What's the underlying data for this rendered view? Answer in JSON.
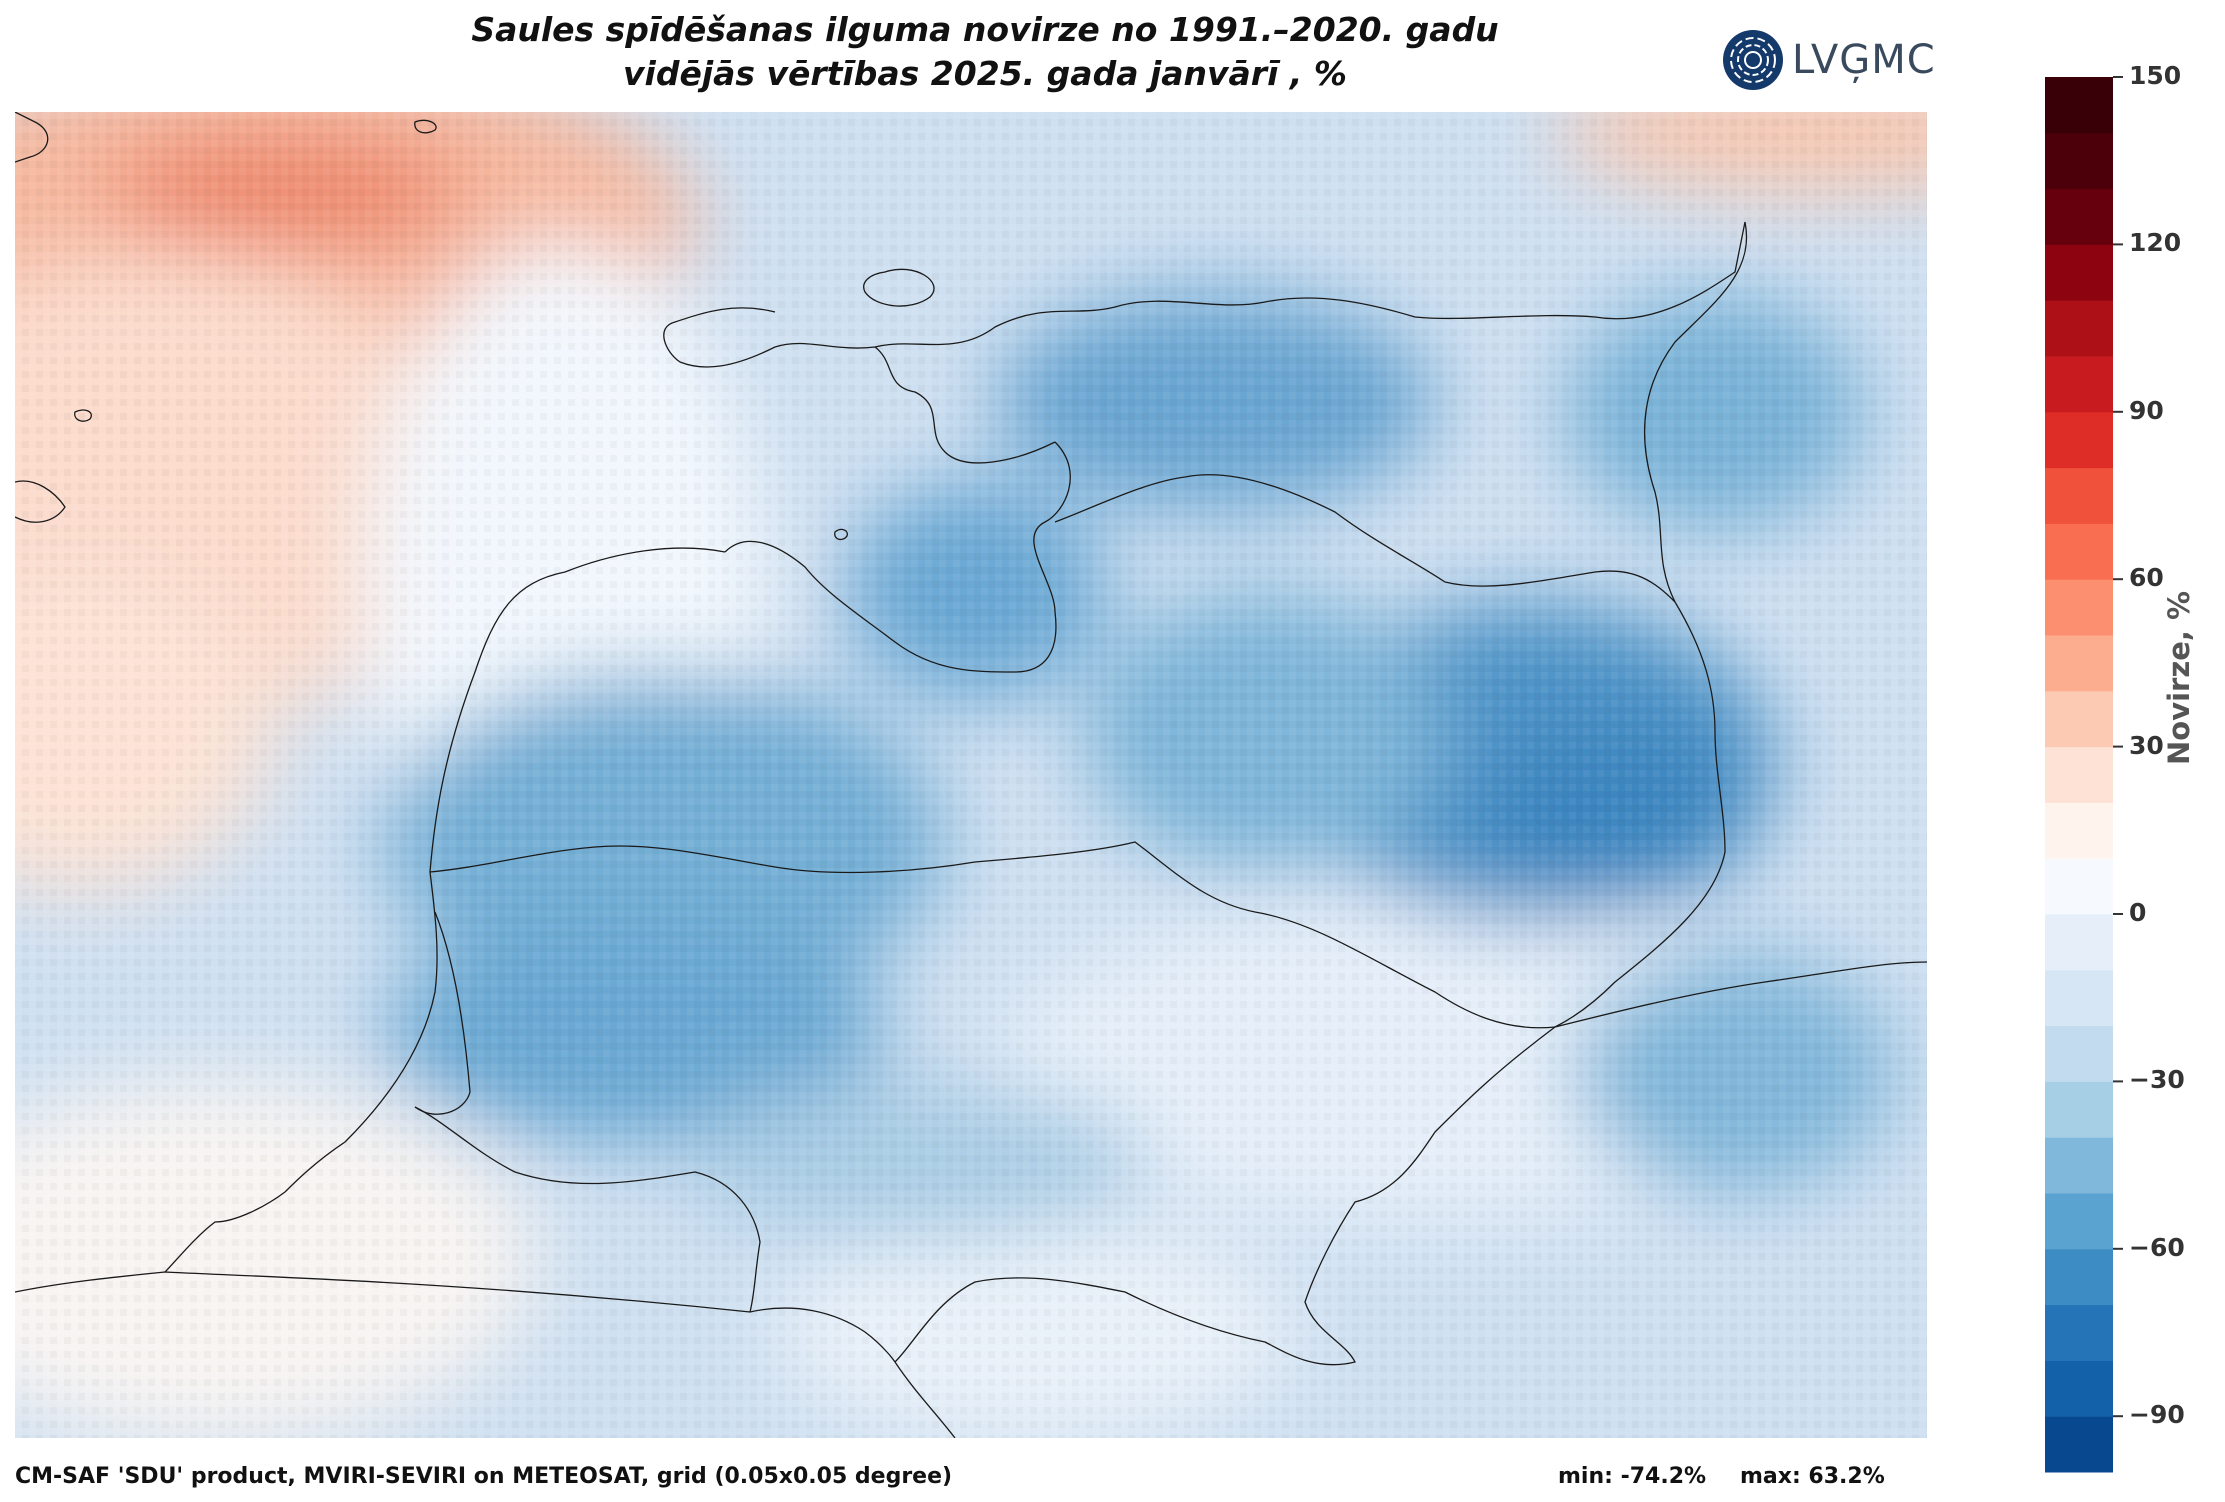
{
  "title": {
    "line1": "Saules spīdēšanas ilguma novirze no 1991.–2020. gadu",
    "line2": "vidējās vērtības 2025. gada janvārī , %"
  },
  "logo": {
    "text": "LVĢMC",
    "icon": "lvgmc-logo-icon"
  },
  "colorbar": {
    "title": "Novirze, %",
    "ticks": [
      "150",
      "120",
      "90",
      "60",
      "30",
      "0",
      "−30",
      "−60",
      "−90"
    ],
    "tick_values": [
      150,
      120,
      90,
      60,
      30,
      0,
      -30,
      -60,
      -90
    ],
    "range": [
      -100,
      150
    ],
    "step": 10,
    "colors": [
      "#08488e",
      "#1361a8",
      "#2474b7",
      "#3d8dc4",
      "#5aa2cf",
      "#7fb8da",
      "#a6cee4",
      "#c2dbee",
      "#d6e6f4",
      "#e6eff9",
      "#f6fafe",
      "#fff3ee",
      "#fee2d5",
      "#fcc9b2",
      "#fcad90",
      "#fb8f6f",
      "#f96e51",
      "#f0513b",
      "#de2d26",
      "#c81b20",
      "#ad1016",
      "#8d0410",
      "#67000d",
      "#4c0009",
      "#3a0007"
    ]
  },
  "footer": {
    "source": "CM-SAF 'SDU' product, MVIRI-SEVIRI on METEOSAT, grid (0.05x0.05 degree)",
    "min": "min: -74.2%",
    "max": "max: 63.2%"
  },
  "map": {
    "colors": {
      "land_border": "#1a1a1a",
      "coast": "#1a1a1a"
    }
  }
}
